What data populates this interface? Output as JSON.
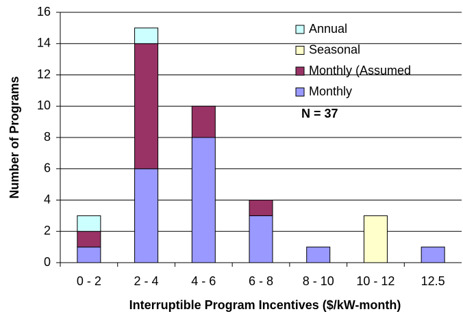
{
  "chart_data": {
    "type": "stacked_bar",
    "xlabel": "Interruptible Program Incentives ($/kW-month)",
    "ylabel": "Number of Programs",
    "annotation": "N = 37",
    "categories": [
      "0 - 2",
      "2 - 4",
      "4 - 6",
      "6 - 8",
      "8 - 10",
      "10 - 12",
      "12.5"
    ],
    "series": [
      {
        "name": "Monthly",
        "color": "#9999ff",
        "values": [
          1,
          6,
          8,
          3,
          1,
          0,
          1
        ]
      },
      {
        "name": "Monthly (Assumed",
        "color": "#993366",
        "values": [
          1,
          8,
          2,
          1,
          0,
          0,
          0
        ]
      },
      {
        "name": "Seasonal",
        "color": "#ffffcc",
        "values": [
          0,
          0,
          0,
          0,
          0,
          3,
          0
        ]
      },
      {
        "name": "Annual",
        "color": "#ccffff",
        "values": [
          1,
          1,
          0,
          0,
          0,
          0,
          0
        ]
      }
    ],
    "ylim": [
      0,
      16
    ],
    "yticks": [
      0,
      2,
      4,
      6,
      8,
      10,
      12,
      14,
      16
    ],
    "grid": true
  }
}
